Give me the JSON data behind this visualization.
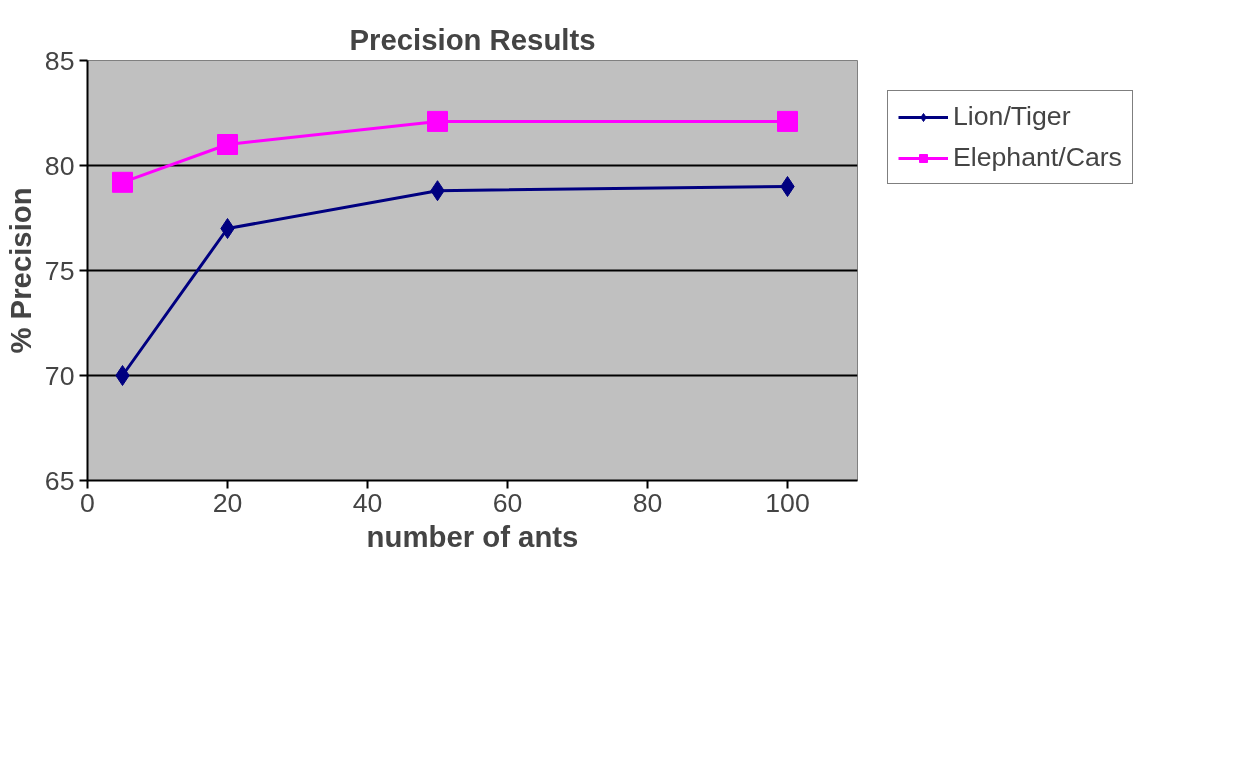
{
  "chart_data": {
    "type": "line",
    "title": "Precision Results",
    "xlabel": "number of ants",
    "ylabel": "% Precision",
    "x": [
      5,
      20,
      50,
      100
    ],
    "series": [
      {
        "name": "Lion/Tiger",
        "color": "#000080",
        "marker": "diamond",
        "values": [
          70,
          77,
          78.8,
          79
        ]
      },
      {
        "name": "Elephant/Cars",
        "color": "#ff00ff",
        "marker": "square",
        "values": [
          79.2,
          81,
          82.1,
          82.1
        ]
      }
    ],
    "xlim": [
      0,
      110
    ],
    "xticks": [
      0,
      20,
      40,
      60,
      80,
      100
    ],
    "ylim": [
      65,
      85
    ],
    "yticks": [
      65,
      70,
      75,
      80,
      85
    ],
    "grid": "y",
    "legend": "right",
    "line_style": "solid"
  }
}
